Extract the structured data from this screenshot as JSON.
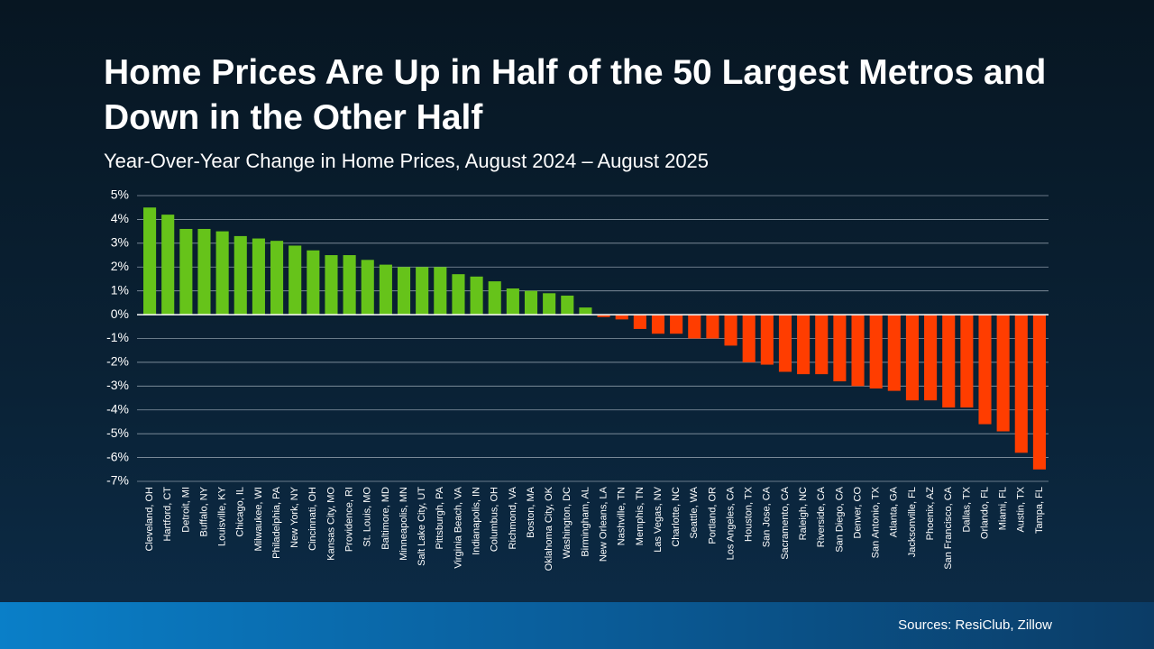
{
  "chart_data": {
    "type": "bar",
    "title": "Home Prices Are Up in Half of the 50 Largest Metros and Down in the Other Half",
    "subtitle": "Year-Over-Year Change in Home Prices, August 2024 – August 2025",
    "source": "Sources: ResiClub, Zillow",
    "categories": [
      "Cleveland, OH",
      "Hartford, CT",
      "Detroit, MI",
      "Buffalo, NY",
      "Louisville, KY",
      "Chicago, IL",
      "Milwaukee, WI",
      "Philadelphia, PA",
      "New York, NY",
      "Cincinnati, OH",
      "Kansas City, MO",
      "Providence, RI",
      "St. Louis, MO",
      "Baltimore, MD",
      "Minneapolis, MN",
      "Salt Lake City, UT",
      "Pittsburgh, PA",
      "Virginia Beach, VA",
      "Indianapolis, IN",
      "Columbus, OH",
      "Richmond, VA",
      "Boston, MA",
      "Oklahoma City, OK",
      "Washington, DC",
      "Birmingham, AL",
      "New Orleans, LA",
      "Nashville, TN",
      "Memphis, TN",
      "Las Vegas, NV",
      "Charlotte, NC",
      "Seattle, WA",
      "Portland, OR",
      "Los Angeles, CA",
      "Houston, TX",
      "San Jose, CA",
      "Sacramento, CA",
      "Raleigh, NC",
      "Riverside, CA",
      "San Diego, CA",
      "Denver, CO",
      "San Antonio, TX",
      "Atlanta, GA",
      "Jacksonville, FL",
      "Phoenix, AZ",
      "San Francisco, CA",
      "Dallas, TX",
      "Orlando, FL",
      "Miami, FL",
      "Austin, TX",
      "Tampa, FL"
    ],
    "values": [
      4.5,
      4.2,
      3.6,
      3.6,
      3.5,
      3.3,
      3.2,
      3.1,
      2.9,
      2.7,
      2.5,
      2.5,
      2.3,
      2.1,
      2.0,
      2.0,
      2.0,
      1.7,
      1.6,
      1.4,
      1.1,
      1.0,
      0.9,
      0.8,
      0.3,
      -0.1,
      -0.2,
      -0.6,
      -0.8,
      -0.8,
      -1.0,
      -1.0,
      -1.3,
      -2.0,
      -2.1,
      -2.4,
      -2.5,
      -2.5,
      -2.8,
      -3.0,
      -3.1,
      -3.2,
      -3.6,
      -3.6,
      -3.9,
      -3.9,
      -4.6,
      -4.9,
      -5.8,
      -6.5
    ],
    "colors": {
      "positive": "#66c31a",
      "negative": "#ff3d00"
    },
    "ylim": [
      -7,
      5
    ],
    "yticks": [
      {
        "value": 5,
        "label": "5%"
      },
      {
        "value": 4,
        "label": "4%"
      },
      {
        "value": 3,
        "label": "3%"
      },
      {
        "value": 2,
        "label": "2%"
      },
      {
        "value": 1,
        "label": "1%"
      },
      {
        "value": 0,
        "label": "0%"
      },
      {
        "value": -1,
        "label": "-1%"
      },
      {
        "value": -2,
        "label": "-2%"
      },
      {
        "value": -3,
        "label": "-3%"
      },
      {
        "value": -4,
        "label": "-4%"
      },
      {
        "value": -5,
        "label": "-5%"
      },
      {
        "value": -6,
        "label": "-6%"
      },
      {
        "value": -7,
        "label": "-7%"
      }
    ],
    "grid": true
  }
}
